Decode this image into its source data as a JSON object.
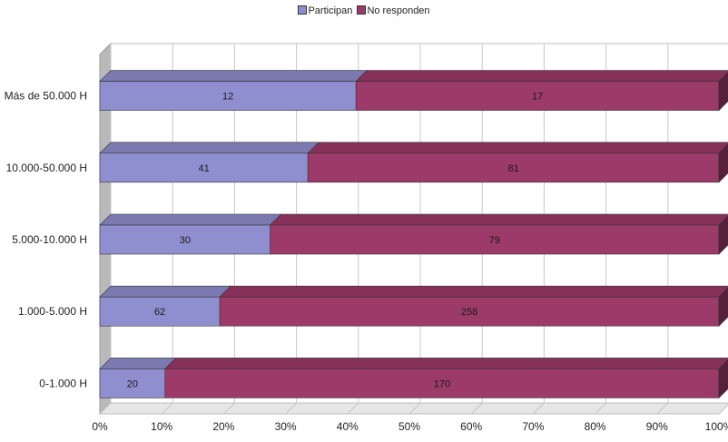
{
  "chart_data": {
    "type": "bar",
    "stacked": "100%",
    "orientation": "horizontal",
    "title": "",
    "xlabel": "",
    "ylabel": "",
    "categories": [
      "0-1.000 H",
      "1.000-5.000 H",
      "5.000-10.000 H",
      "10.000-50.000 H",
      "Más de 50.000 H"
    ],
    "series": [
      {
        "name": "Participan",
        "values": [
          20,
          62,
          30,
          41,
          12
        ],
        "color": "#8f8fd0"
      },
      {
        "name": "No responden",
        "values": [
          170,
          258,
          79,
          81,
          17
        ],
        "color": "#9c3a6a"
      }
    ],
    "x_ticks": [
      "0%",
      "10%",
      "20%",
      "30%",
      "40%",
      "50%",
      "60%",
      "70%",
      "80%",
      "90%",
      "100%"
    ],
    "xlim": [
      0,
      100
    ],
    "grid": true,
    "legend_position": "top-center",
    "style": "3d"
  }
}
